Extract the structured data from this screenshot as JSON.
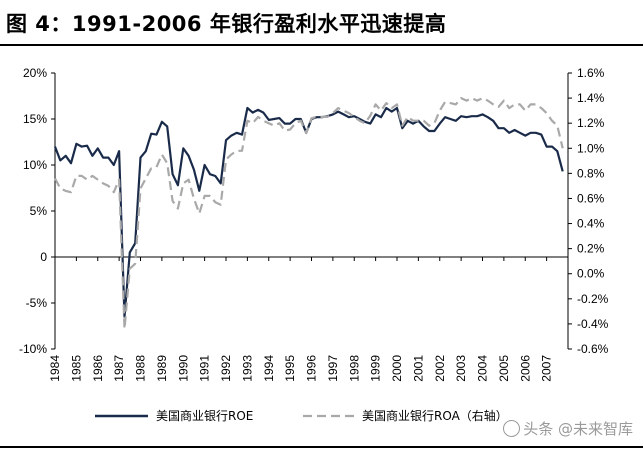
{
  "figure": {
    "title": "图 4：1991-2006 年银行盈利水平迅速提高",
    "watermark": "头条 @未来智库"
  },
  "colors": {
    "roe": "#1a2b4a",
    "roa": "#a9a9a9"
  },
  "chart_data": {
    "type": "line",
    "x_tick_labels": [
      "1984",
      "1985",
      "1986",
      "1987",
      "1988",
      "1989",
      "1990",
      "1991",
      "1992",
      "1993",
      "1994",
      "1995",
      "1996",
      "1997",
      "1998",
      "1999",
      "2000",
      "2001",
      "2002",
      "2003",
      "2004",
      "2005",
      "2006",
      "2007"
    ],
    "xlim": [
      1984,
      2008
    ],
    "y_left": {
      "ylim": [
        -10,
        20
      ],
      "ticks": [
        -10,
        -5,
        0,
        5,
        10,
        15,
        20
      ],
      "tick_labels": [
        "-10%",
        "-5%",
        "0",
        "5%",
        "10%",
        "15%",
        "20%"
      ]
    },
    "y_right": {
      "ylim": [
        -0.6,
        1.6
      ],
      "ticks": [
        -0.6,
        -0.4,
        -0.2,
        0.0,
        0.2,
        0.4,
        0.6,
        0.8,
        1.0,
        1.2,
        1.4,
        1.6
      ],
      "tick_labels": [
        "-0.6%",
        "-0.4%",
        "-0.2%",
        "0.0%",
        "0.2%",
        "0.4%",
        "0.6%",
        "0.8%",
        "1.0%",
        "1.2%",
        "1.4%",
        "1.6%"
      ]
    },
    "legend_position": "bottom",
    "grid": false,
    "series": [
      {
        "name": "美国商业银行ROE",
        "axis": "left",
        "style": "solid",
        "x": [
          1984.0,
          1984.25,
          1984.5,
          1984.75,
          1985.0,
          1985.25,
          1985.5,
          1985.75,
          1986.0,
          1986.25,
          1986.5,
          1986.75,
          1987.0,
          1987.25,
          1987.5,
          1987.75,
          1988.0,
          1988.25,
          1988.5,
          1988.75,
          1989.0,
          1989.25,
          1989.5,
          1989.75,
          1990.0,
          1990.25,
          1990.5,
          1990.75,
          1991.0,
          1991.25,
          1991.5,
          1991.75,
          1992.0,
          1992.25,
          1992.5,
          1992.75,
          1993.0,
          1993.25,
          1993.5,
          1993.75,
          1994.0,
          1994.25,
          1994.5,
          1994.75,
          1995.0,
          1995.25,
          1995.5,
          1995.75,
          1996.0,
          1996.25,
          1996.5,
          1996.75,
          1997.0,
          1997.25,
          1997.5,
          1997.75,
          1998.0,
          1998.25,
          1998.5,
          1998.75,
          1999.0,
          1999.25,
          1999.5,
          1999.75,
          2000.0,
          2000.25,
          2000.5,
          2000.75,
          2001.0,
          2001.25,
          2001.5,
          2001.75,
          2002.0,
          2002.25,
          2002.5,
          2002.75,
          2003.0,
          2003.25,
          2003.5,
          2003.75,
          2004.0,
          2004.25,
          2004.5,
          2004.75,
          2005.0,
          2005.25,
          2005.5,
          2005.75,
          2006.0,
          2006.25,
          2006.5,
          2006.75,
          2007.0,
          2007.25,
          2007.5,
          2007.75
        ],
        "values": [
          12.0,
          10.5,
          11.0,
          10.2,
          12.3,
          12.0,
          12.1,
          11.0,
          11.8,
          10.8,
          10.8,
          10.0,
          11.5,
          -6.5,
          0.5,
          1.5,
          10.8,
          11.5,
          13.4,
          13.3,
          14.7,
          14.2,
          9.0,
          7.8,
          11.8,
          11.0,
          9.5,
          7.2,
          10.0,
          9.0,
          8.8,
          8.0,
          12.7,
          13.2,
          13.5,
          13.3,
          16.2,
          15.7,
          16.0,
          15.7,
          14.9,
          15.0,
          15.1,
          14.5,
          14.5,
          15.0,
          15.0,
          13.5,
          15.0,
          15.2,
          15.2,
          15.3,
          15.5,
          15.8,
          15.5,
          15.2,
          15.3,
          15.0,
          14.7,
          14.5,
          15.5,
          15.2,
          16.2,
          15.8,
          16.2,
          14.0,
          14.8,
          14.5,
          14.8,
          14.2,
          13.7,
          13.7,
          14.5,
          15.2,
          15.0,
          14.8,
          15.3,
          15.2,
          15.3,
          15.3,
          15.5,
          15.2,
          14.8,
          14.0,
          14.0,
          13.5,
          13.8,
          13.5,
          13.2,
          13.5,
          13.5,
          13.3,
          12.0,
          12.0,
          11.5,
          9.3
        ]
      },
      {
        "name": "美国商业银行ROA（右轴）",
        "axis": "right",
        "style": "dashed",
        "x": [
          1984.0,
          1984.25,
          1984.5,
          1984.75,
          1985.0,
          1985.25,
          1985.5,
          1985.75,
          1986.0,
          1986.25,
          1986.5,
          1986.75,
          1987.0,
          1987.25,
          1987.5,
          1987.75,
          1988.0,
          1988.25,
          1988.5,
          1988.75,
          1989.0,
          1989.25,
          1989.5,
          1989.75,
          1990.0,
          1990.25,
          1990.5,
          1990.75,
          1991.0,
          1991.25,
          1991.5,
          1991.75,
          1992.0,
          1992.25,
          1992.5,
          1992.75,
          1993.0,
          1993.25,
          1993.5,
          1993.75,
          1994.0,
          1994.25,
          1994.5,
          1994.75,
          1995.0,
          1995.25,
          1995.5,
          1995.75,
          1996.0,
          1996.25,
          1996.5,
          1996.75,
          1997.0,
          1997.25,
          1997.5,
          1997.75,
          1998.0,
          1998.25,
          1998.5,
          1998.75,
          1999.0,
          1999.25,
          1999.5,
          1999.75,
          2000.0,
          2000.25,
          2000.5,
          2000.75,
          2001.0,
          2001.25,
          2001.5,
          2001.75,
          2002.0,
          2002.25,
          2002.5,
          2002.75,
          2003.0,
          2003.25,
          2003.5,
          2003.75,
          2004.0,
          2004.25,
          2004.5,
          2004.75,
          2005.0,
          2005.25,
          2005.5,
          2005.75,
          2006.0,
          2006.25,
          2006.5,
          2006.75,
          2007.0,
          2007.25,
          2007.5,
          2007.75
        ],
        "values": [
          0.76,
          0.68,
          0.66,
          0.65,
          0.78,
          0.78,
          0.75,
          0.78,
          0.75,
          0.72,
          0.7,
          0.65,
          0.75,
          -0.44,
          0.04,
          0.08,
          0.68,
          0.76,
          0.84,
          0.85,
          0.95,
          0.88,
          0.58,
          0.52,
          0.72,
          0.75,
          0.6,
          0.48,
          0.62,
          0.62,
          0.57,
          0.55,
          0.91,
          0.95,
          0.98,
          0.98,
          1.22,
          1.2,
          1.25,
          1.22,
          1.2,
          1.18,
          1.2,
          1.14,
          1.15,
          1.2,
          1.22,
          1.12,
          1.24,
          1.25,
          1.25,
          1.25,
          1.28,
          1.32,
          1.3,
          1.28,
          1.25,
          1.22,
          1.2,
          1.26,
          1.35,
          1.3,
          1.36,
          1.32,
          1.35,
          1.18,
          1.25,
          1.22,
          1.22,
          1.22,
          1.18,
          1.2,
          1.3,
          1.37,
          1.36,
          1.35,
          1.4,
          1.38,
          1.4,
          1.38,
          1.4,
          1.38,
          1.35,
          1.33,
          1.38,
          1.32,
          1.35,
          1.35,
          1.3,
          1.35,
          1.35,
          1.32,
          1.28,
          1.22,
          1.18,
          1.0
        ]
      }
    ]
  }
}
